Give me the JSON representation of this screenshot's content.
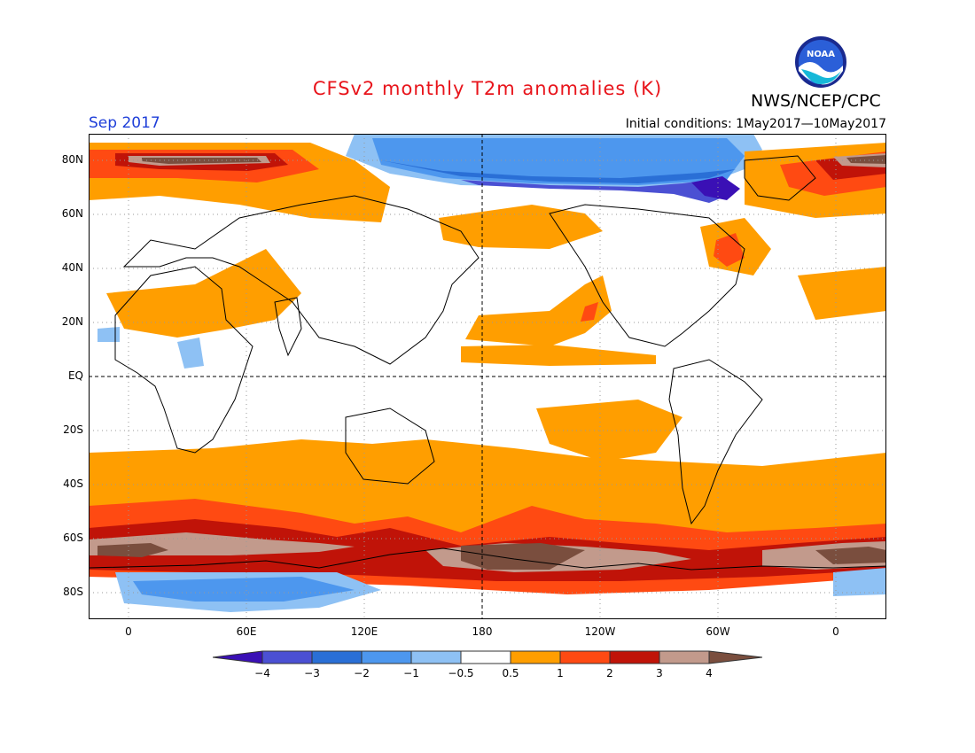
{
  "header": {
    "title": "CFSv2 monthly T2m anomalies (K)",
    "agency": "NWS/NCEP/CPC",
    "logo_text": "NOAA",
    "month": "Sep 2017",
    "initial_conditions": "Initial conditions: 1May2017—10May2017"
  },
  "colors": {
    "title": "#e8141b",
    "month": "#1f3fd9",
    "neg4": "#3a10b5",
    "neg3": "#4b50d3",
    "neg2": "#2a6fd6",
    "neg1": "#4d97ee",
    "neg05": "#8ec1f4",
    "neutral": "#ffffff",
    "pos05": "#ff9e00",
    "pos1": "#ff4a12",
    "pos2": "#c01308",
    "pos3": "#c29a8c",
    "pos4": "#7a4e3e",
    "pos4text": "#6d4636"
  },
  "axes": {
    "lat_labels": [
      "80N",
      "60N",
      "40N",
      "20N",
      "EQ",
      "20S",
      "40S",
      "60S",
      "80S"
    ],
    "lon_labels": [
      "0",
      "60E",
      "120E",
      "180",
      "120W",
      "60W",
      "0"
    ]
  },
  "colorbar": {
    "labels": [
      "−4",
      "−3",
      "−2",
      "−1",
      "−0.5",
      "0.5",
      "1",
      "2",
      "3",
      "4"
    ]
  }
}
